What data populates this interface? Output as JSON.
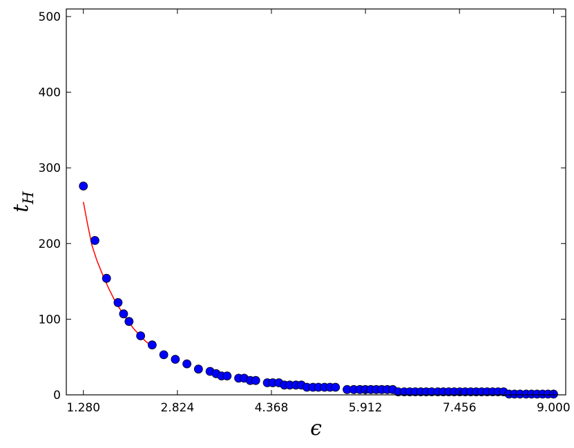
{
  "chart_data": {
    "type": "scatter",
    "xlabel": "ϵ",
    "ylabel": "t",
    "ylabel_sub": "H",
    "xlim": [
      1.0,
      9.2
    ],
    "ylim": [
      0,
      510
    ],
    "xticks": [
      1.28,
      2.824,
      4.368,
      5.912,
      7.456,
      9.0
    ],
    "xtick_labels": [
      "1.280",
      "2.824",
      "4.368",
      "5.912",
      "7.456",
      "9.000"
    ],
    "yticks": [
      0,
      100,
      200,
      300,
      400,
      500
    ],
    "ytick_labels": [
      "0",
      "100",
      "200",
      "300",
      "400",
      "500"
    ],
    "grid": false,
    "series": [
      {
        "kind": "points",
        "color": "#0000ff",
        "x": [
          1.28,
          1.47,
          1.66,
          1.85,
          1.94,
          2.03,
          2.22,
          2.41,
          2.6,
          2.79,
          2.98,
          3.17,
          3.36,
          3.46,
          3.55,
          3.64,
          3.83,
          3.92,
          4.02,
          4.11,
          4.3,
          4.39,
          4.49,
          4.58,
          4.67,
          4.77,
          4.86,
          4.95,
          5.05,
          5.14,
          5.24,
          5.33,
          5.42,
          5.61,
          5.72,
          5.82,
          5.91,
          6.0,
          6.09,
          6.18,
          6.27,
          6.36,
          6.45,
          6.55,
          6.64,
          6.73,
          6.82,
          6.91,
          7.0,
          7.1,
          7.19,
          7.28,
          7.37,
          7.46,
          7.55,
          7.64,
          7.73,
          7.82,
          7.91,
          8.0,
          8.09,
          8.18,
          8.27,
          8.36,
          8.45,
          8.55,
          8.64,
          8.73,
          8.82,
          8.91,
          9.0
        ],
        "y": [
          276,
          204,
          154,
          122,
          107,
          97,
          78,
          66,
          53,
          47,
          41,
          34,
          31,
          28,
          25,
          25,
          22,
          22,
          19,
          19,
          16,
          16,
          16,
          13,
          13,
          13,
          13,
          10,
          10,
          10,
          10,
          10,
          10,
          7,
          7,
          7,
          7,
          7,
          7,
          7,
          7,
          7,
          4,
          4,
          4,
          4,
          4,
          4,
          4,
          4,
          4,
          4,
          4,
          4,
          4,
          4,
          4,
          4,
          4,
          4,
          4,
          4,
          1,
          1,
          1,
          1,
          1,
          1,
          1,
          1,
          1
        ]
      },
      {
        "kind": "fit-line",
        "color": "#ff0000",
        "x": [
          1.28,
          1.35,
          1.42,
          1.5,
          1.6,
          1.7,
          1.8,
          1.9,
          2.0,
          2.1,
          2.2,
          2.3,
          2.41
        ],
        "y": [
          255,
          225,
          198,
          178,
          158,
          140,
          124,
          111,
          99,
          88,
          79,
          71,
          64
        ]
      }
    ]
  }
}
